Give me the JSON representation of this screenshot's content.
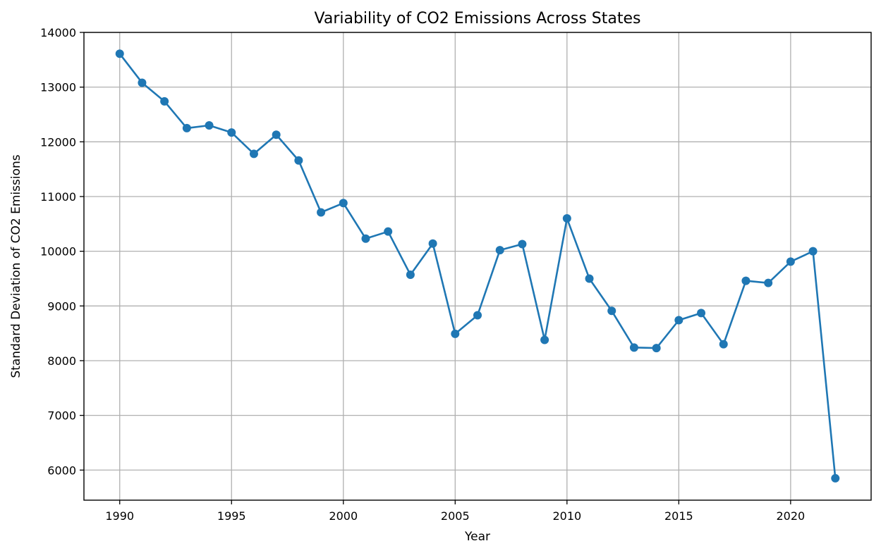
{
  "chart_data": {
    "type": "line",
    "title": "Variability of CO2 Emissions Across States",
    "xlabel": "Year",
    "ylabel": "Standard Deviation of CO2 Emissions",
    "xlim": [
      1988.4,
      2023.6
    ],
    "ylim": [
      5450,
      14000
    ],
    "xticks": [
      1990,
      1995,
      2000,
      2005,
      2010,
      2015,
      2020
    ],
    "yticks": [
      6000,
      7000,
      8000,
      9000,
      10000,
      11000,
      12000,
      13000,
      14000
    ],
    "grid": true,
    "color": "#1f77b4",
    "marker": "circle",
    "series": [
      {
        "x": [
          1990,
          1991,
          1992,
          1993,
          1994,
          1995,
          1996,
          1997,
          1998,
          1999,
          2000,
          2001,
          2002,
          2003,
          2004,
          2005,
          2006,
          2007,
          2008,
          2009,
          2010,
          2011,
          2012,
          2013,
          2014,
          2015,
          2016,
          2017,
          2018,
          2019,
          2020,
          2021,
          2022
        ],
        "y": [
          13610,
          13080,
          12740,
          12250,
          12300,
          12170,
          11780,
          12130,
          11660,
          10710,
          10880,
          10230,
          10360,
          9570,
          10140,
          8490,
          8830,
          10020,
          10130,
          8380,
          10600,
          9500,
          8910,
          8240,
          8230,
          8740,
          8870,
          8300,
          9460,
          9420,
          9810,
          10000,
          5850
        ]
      }
    ]
  }
}
